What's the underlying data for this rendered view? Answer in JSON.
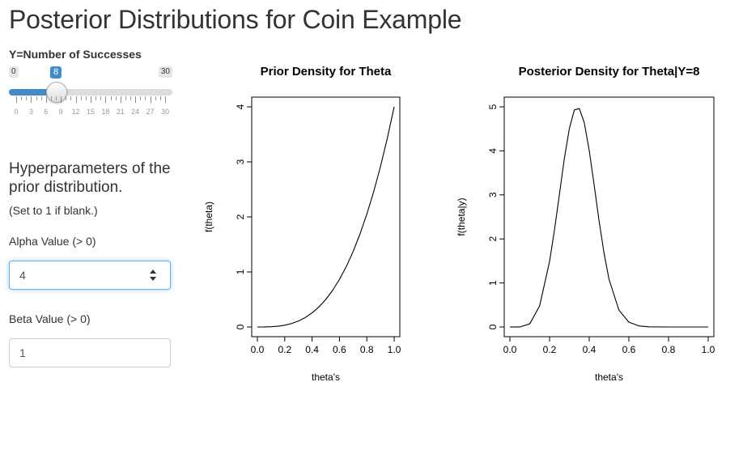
{
  "page": {
    "title": "Posterior Distributions for Coin Example"
  },
  "slider": {
    "label": "Y=Number of Successes",
    "min": 0,
    "max": 30,
    "value": 8,
    "min_label": "0",
    "max_label": "30",
    "value_label": "8",
    "tick_labels": [
      "0",
      "3",
      "6",
      "9",
      "12",
      "15",
      "18",
      "21",
      "24",
      "27",
      "30"
    ],
    "accent": "#428bca"
  },
  "hyper": {
    "title": "Hyperparameters of the prior distribution.",
    "note": "(Set to 1 if blank.)",
    "alpha_label": "Alpha Value (> 0)",
    "alpha_value": "4",
    "beta_label": "Beta Value (> 0)",
    "beta_value": "1"
  },
  "chart_data": [
    {
      "type": "line",
      "title": "Prior Density for Theta",
      "xlabel": "theta's",
      "ylabel": "f(theta)",
      "xlim": [
        0,
        1
      ],
      "ylim": [
        0,
        4
      ],
      "xticks": [
        "0.0",
        "0.2",
        "0.4",
        "0.6",
        "0.8",
        "1.0"
      ],
      "yticks": [
        "0",
        "1",
        "2",
        "3",
        "4"
      ],
      "x": [
        0,
        0.05,
        0.1,
        0.15,
        0.2,
        0.25,
        0.3,
        0.35,
        0.4,
        0.45,
        0.5,
        0.55,
        0.6,
        0.65,
        0.7,
        0.75,
        0.8,
        0.85,
        0.9,
        0.95,
        1.0
      ],
      "y": [
        0,
        0.0005,
        0.004,
        0.0135,
        0.032,
        0.0625,
        0.108,
        0.1715,
        0.256,
        0.3645,
        0.5,
        0.6655,
        0.864,
        1.0985,
        1.372,
        1.6875,
        2.048,
        2.4565,
        2.916,
        3.4295,
        4.0
      ]
    },
    {
      "type": "line",
      "title": "Posterior Density for Theta|Y=8",
      "xlabel": "theta's",
      "ylabel": "f(theta|y)",
      "xlim": [
        0,
        1
      ],
      "ylim": [
        0,
        5
      ],
      "xticks": [
        "0.0",
        "0.2",
        "0.4",
        "0.6",
        "0.8",
        "1.0"
      ],
      "yticks": [
        "0",
        "1",
        "2",
        "3",
        "4",
        "5"
      ],
      "x": [
        0,
        0.05,
        0.1,
        0.15,
        0.2,
        0.225,
        0.25,
        0.275,
        0.3,
        0.325,
        0.35,
        0.375,
        0.4,
        0.425,
        0.45,
        0.475,
        0.5,
        0.55,
        0.6,
        0.65,
        0.7,
        0.8,
        0.9,
        1.0
      ],
      "y": [
        0,
        0.0006,
        0.07,
        0.48,
        1.49,
        2.21,
        3.02,
        3.84,
        4.51,
        4.93,
        4.96,
        4.64,
        4.01,
        3.22,
        2.4,
        1.67,
        1.08,
        0.38,
        0.11,
        0.025,
        0.004,
        0.0001,
        0,
        0
      ]
    }
  ]
}
